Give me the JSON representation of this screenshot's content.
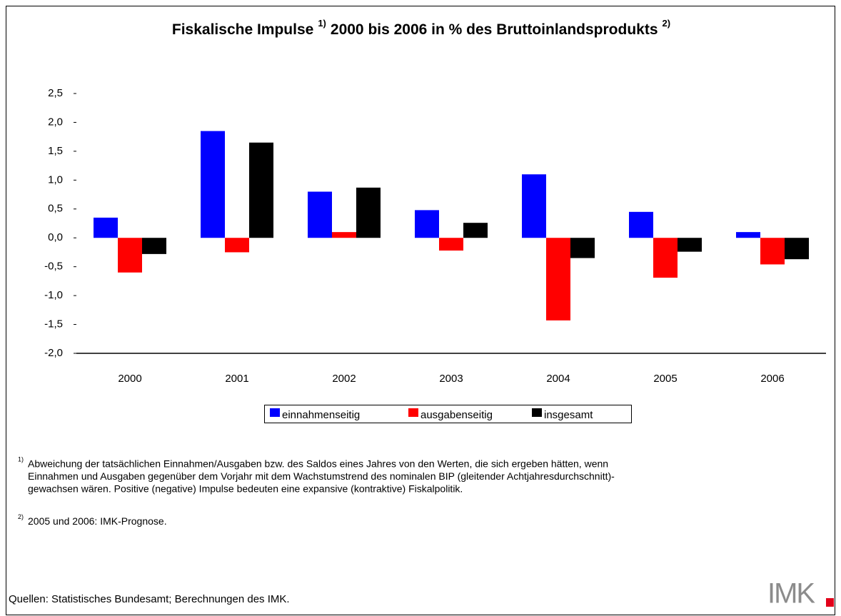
{
  "chart_data": {
    "type": "bar",
    "title": [
      "Fiskalische Impulse",
      "1)",
      "2000 bis 2006 in % des Bruttoinlandsprodukts",
      "2)"
    ],
    "categories": [
      "2000",
      "2001",
      "2002",
      "2003",
      "2004",
      "2005",
      "2006"
    ],
    "series": [
      {
        "name": "einnahmenseitig",
        "color": "#0000ff",
        "values": [
          0.35,
          1.85,
          0.8,
          0.48,
          1.1,
          0.45,
          0.1
        ]
      },
      {
        "name": "ausgabenseitig",
        "color": "#ff0000",
        "values": [
          -0.6,
          -0.25,
          0.1,
          -0.22,
          -1.43,
          -0.69,
          -0.46
        ]
      },
      {
        "name": "insgesamt",
        "color": "#000000",
        "values": [
          -0.28,
          1.65,
          0.87,
          0.26,
          -0.35,
          -0.24,
          -0.37
        ]
      }
    ],
    "ylim": [
      -2.0,
      2.5
    ],
    "yticks": [
      {
        "value": -2.0,
        "label": "-2,0"
      },
      {
        "value": -1.5,
        "label": "-1,5"
      },
      {
        "value": -1.0,
        "label": "-1,0"
      },
      {
        "value": -0.5,
        "label": "-0,5"
      },
      {
        "value": 0.0,
        "label": "0,0"
      },
      {
        "value": 0.5,
        "label": "0,5"
      },
      {
        "value": 1.0,
        "label": "1,0"
      },
      {
        "value": 1.5,
        "label": "1,5"
      },
      {
        "value": 2.0,
        "label": "2,0"
      },
      {
        "value": 2.5,
        "label": "2,5"
      }
    ],
    "grid": false,
    "legend": "bottom"
  },
  "footnotes": [
    {
      "mark": "1)",
      "lines": [
        "Abweichung der tatsächlichen Einnahmen/Ausgaben bzw. des Saldos eines Jahres von den Werten, die sich ergeben hätten, wenn",
        "Einnahmen und Ausgaben gegenüber dem Vorjahr mit dem Wachstumstrend des nominalen BIP (gleitender Achtjahresdurchschnitt)-",
        "gewachsen wären. Positive (negative) Impulse bedeuten eine expansive (kontraktive) Fiskalpolitik."
      ]
    },
    {
      "mark": "2)",
      "lines": [
        "2005 und 2006: IMK-Prognose."
      ]
    }
  ],
  "source": "Quellen: Statistisches Bundesamt; Berechnungen des IMK.",
  "logo": "IMK"
}
